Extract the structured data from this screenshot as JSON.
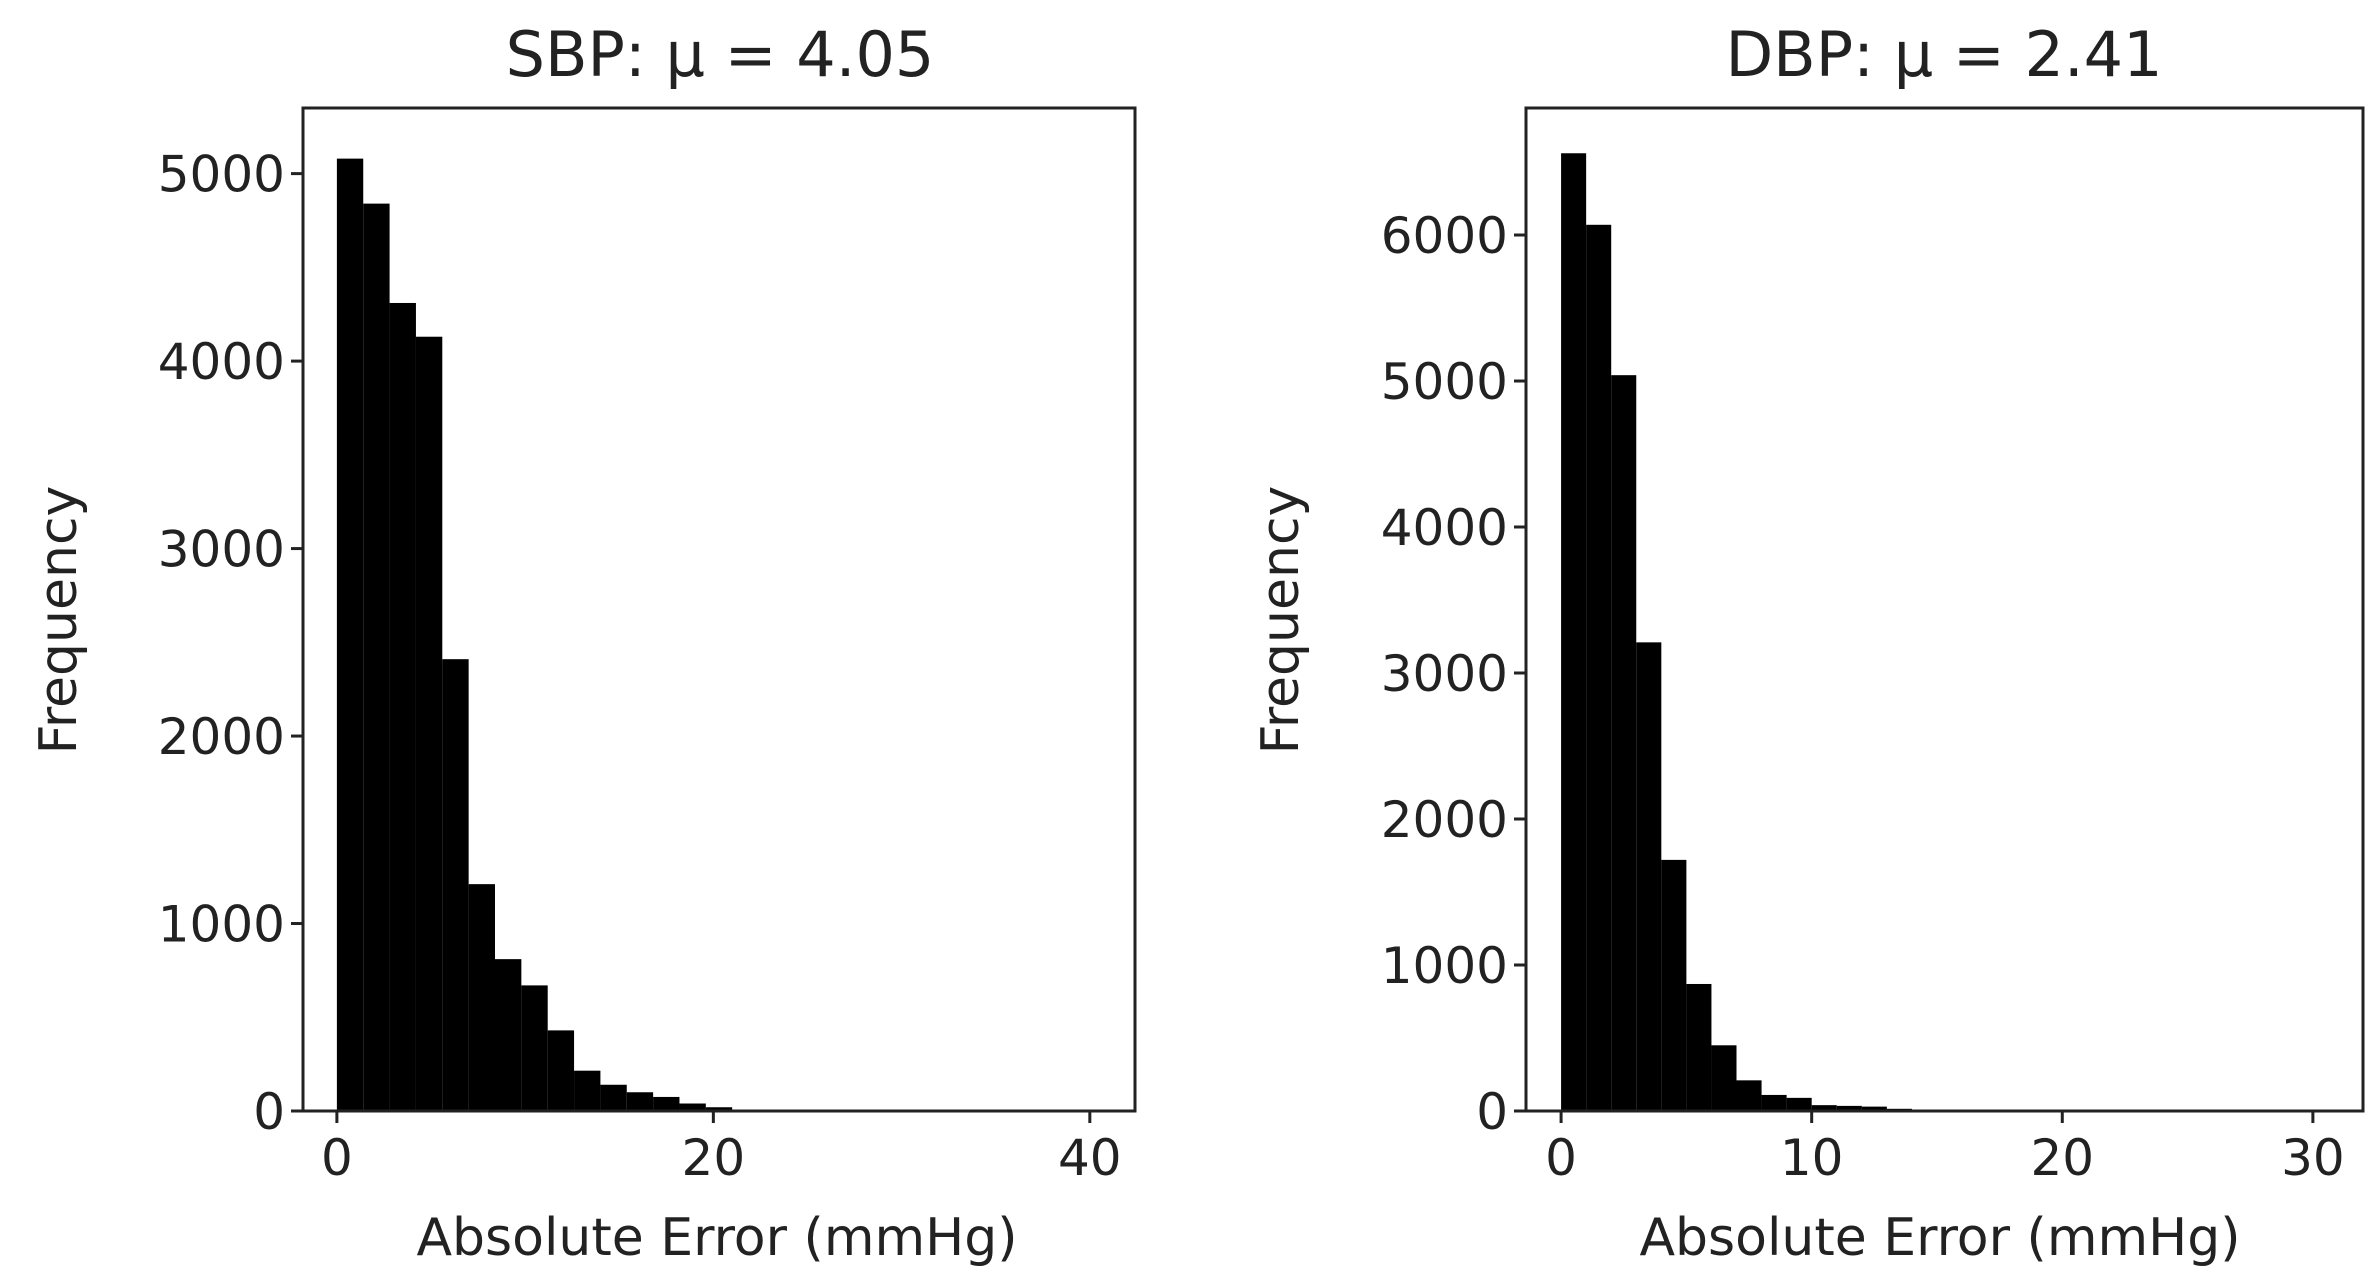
{
  "chart_data": [
    {
      "type": "bar",
      "title": "SBP: μ = 4.05",
      "xlabel": "Absolute Error (mmHg)",
      "ylabel": "Frequency",
      "xlim": [
        -1.8,
        42.4
      ],
      "ylim": [
        0,
        5000
      ],
      "ylim_display": [
        0,
        5350
      ],
      "xticks": [
        0,
        20,
        40
      ],
      "yticks": [
        0,
        1000,
        2000,
        3000,
        4000,
        5000
      ],
      "bin_edges": [
        0.0,
        1.4,
        2.8,
        4.2,
        5.6,
        7.0,
        8.4,
        9.8,
        11.2,
        12.6,
        14.0,
        15.4,
        16.8,
        18.2,
        19.6,
        21.0
      ],
      "values": [
        5080,
        4840,
        4310,
        4130,
        2410,
        1210,
        810,
        670,
        430,
        215,
        140,
        100,
        75,
        40,
        20
      ],
      "bar_color": "#000000",
      "grid": false
    },
    {
      "type": "bar",
      "title": "DBP: μ = 2.41",
      "xlabel": "Absolute Error (mmHg)",
      "ylabel": "Frequency",
      "xlim": [
        -1.4,
        32.0
      ],
      "ylim": [
        0,
        6000
      ],
      "ylim_display": [
        0,
        6870
      ],
      "xticks": [
        0,
        10,
        20,
        30
      ],
      "yticks": [
        0,
        1000,
        2000,
        3000,
        4000,
        5000,
        6000
      ],
      "bin_edges": [
        0.0,
        1.0,
        2.0,
        3.0,
        4.0,
        5.0,
        6.0,
        7.0,
        8.0,
        9.0,
        10.0,
        11.0,
        12.0,
        13.0,
        14.0
      ],
      "values": [
        6560,
        6070,
        5040,
        3210,
        1720,
        870,
        450,
        210,
        110,
        90,
        40,
        35,
        30,
        15
      ],
      "bar_color": "#000000",
      "grid": false
    }
  ]
}
